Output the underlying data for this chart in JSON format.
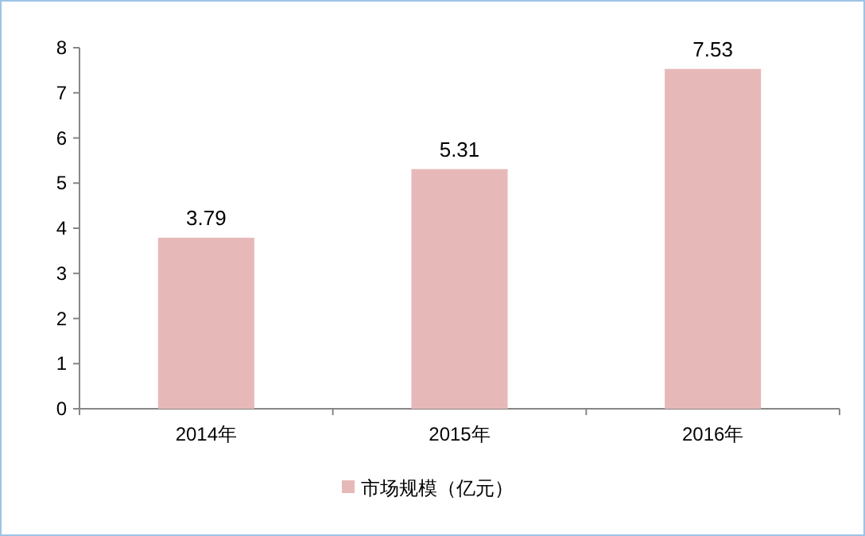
{
  "chart_data": {
    "type": "bar",
    "categories": [
      "2014年",
      "2015年",
      "2016年"
    ],
    "series": [
      {
        "name": "市场规模（亿元）",
        "color": "#e6b9b8",
        "values": [
          3.79,
          5.31,
          7.53
        ]
      }
    ],
    "ylim": [
      0,
      8
    ],
    "yticks": [
      0,
      1,
      2,
      3,
      4,
      5,
      6,
      7,
      8
    ],
    "data_labels": true,
    "legend": "bottom",
    "grid": false
  }
}
